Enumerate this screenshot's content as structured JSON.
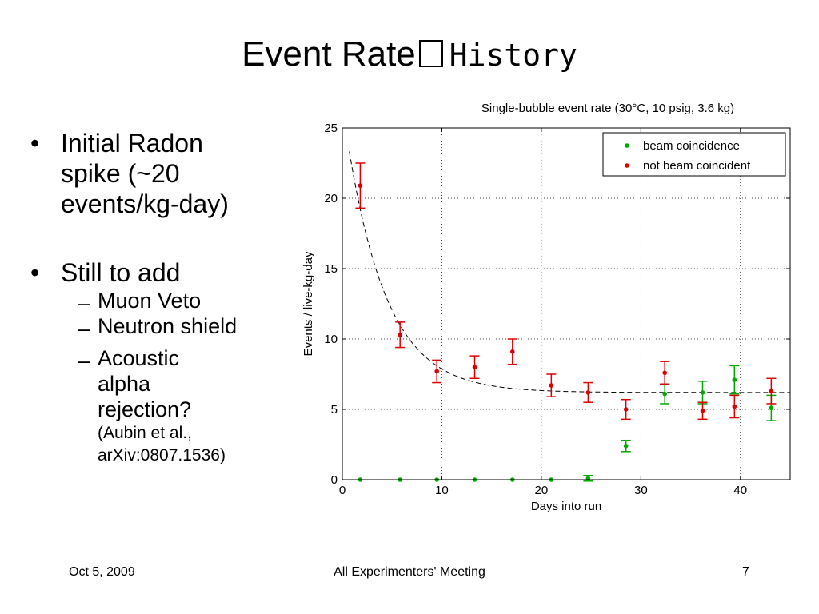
{
  "slide": {
    "title_a": "Event Rate",
    "title_b": "History",
    "bullets": [
      {
        "text": [
          "Initial Radon",
          "spike (~20",
          "events/kg-day)"
        ]
      },
      {
        "text": [
          "Still to add"
        ],
        "sub": [
          {
            "lines": [
              "Muon Veto"
            ]
          },
          {
            "lines": [
              "Neutron shield"
            ]
          },
          {
            "lines": [
              "Acoustic",
              "alpha",
              "rejection?"
            ],
            "small": [
              "(Aubin et al.,",
              "arXiv:0807.1536)"
            ]
          }
        ]
      }
    ],
    "footer": {
      "date": "Oct 5, 2009",
      "meeting": "All Experimenters' Meeting",
      "page": "7"
    }
  },
  "chart_data": {
    "type": "scatter",
    "title": "Single-bubble event rate (30°C, 10 psig, 3.6 kg)",
    "xlabel": "Days into run",
    "ylabel": "Events / live-kg-day",
    "xlim": [
      0,
      45
    ],
    "ylim": [
      0,
      25
    ],
    "xticks": [
      0,
      10,
      20,
      30,
      40
    ],
    "yticks": [
      0,
      5,
      10,
      15,
      20,
      25
    ],
    "grid": true,
    "legend_position": "top-right",
    "series": [
      {
        "name": "beam coincidence",
        "color": "#00aa00",
        "points": [
          {
            "x": 1.8,
            "y": 0.0,
            "err": 0
          },
          {
            "x": 5.8,
            "y": 0.0,
            "err": 0
          },
          {
            "x": 9.5,
            "y": 0.0,
            "err": 0
          },
          {
            "x": 13.3,
            "y": 0.0,
            "err": 0
          },
          {
            "x": 17.1,
            "y": 0.0,
            "err": 0
          },
          {
            "x": 21.0,
            "y": 0.0,
            "err": 0
          },
          {
            "x": 24.7,
            "y": 0.1,
            "err": 0.2
          },
          {
            "x": 28.5,
            "y": 2.4,
            "err": 0.4
          },
          {
            "x": 32.4,
            "y": 6.1,
            "err": 0.7
          },
          {
            "x": 36.2,
            "y": 6.2,
            "err": 0.8
          },
          {
            "x": 39.4,
            "y": 7.1,
            "err": 1.0
          },
          {
            "x": 43.1,
            "y": 5.1,
            "err": 0.9
          }
        ]
      },
      {
        "name": "not beam coincident",
        "color": "#dd0000",
        "points": [
          {
            "x": 1.8,
            "y": 20.9,
            "err": 1.6
          },
          {
            "x": 5.8,
            "y": 10.3,
            "err": 0.9
          },
          {
            "x": 9.5,
            "y": 7.7,
            "err": 0.8
          },
          {
            "x": 13.3,
            "y": 8.0,
            "err": 0.8
          },
          {
            "x": 17.1,
            "y": 9.1,
            "err": 0.9
          },
          {
            "x": 21.0,
            "y": 6.7,
            "err": 0.8
          },
          {
            "x": 24.7,
            "y": 6.2,
            "err": 0.7
          },
          {
            "x": 28.5,
            "y": 5.0,
            "err": 0.7
          },
          {
            "x": 32.4,
            "y": 7.6,
            "err": 0.8
          },
          {
            "x": 36.2,
            "y": 4.9,
            "err": 0.6
          },
          {
            "x": 39.4,
            "y": 5.2,
            "err": 0.8
          },
          {
            "x": 43.1,
            "y": 6.3,
            "err": 0.9
          }
        ]
      }
    ],
    "fit": {
      "type": "exponential",
      "baseline": 6.2,
      "amplitude": 20.4,
      "tau": 4.0,
      "x_from": 0.7,
      "x_to": 45
    }
  }
}
